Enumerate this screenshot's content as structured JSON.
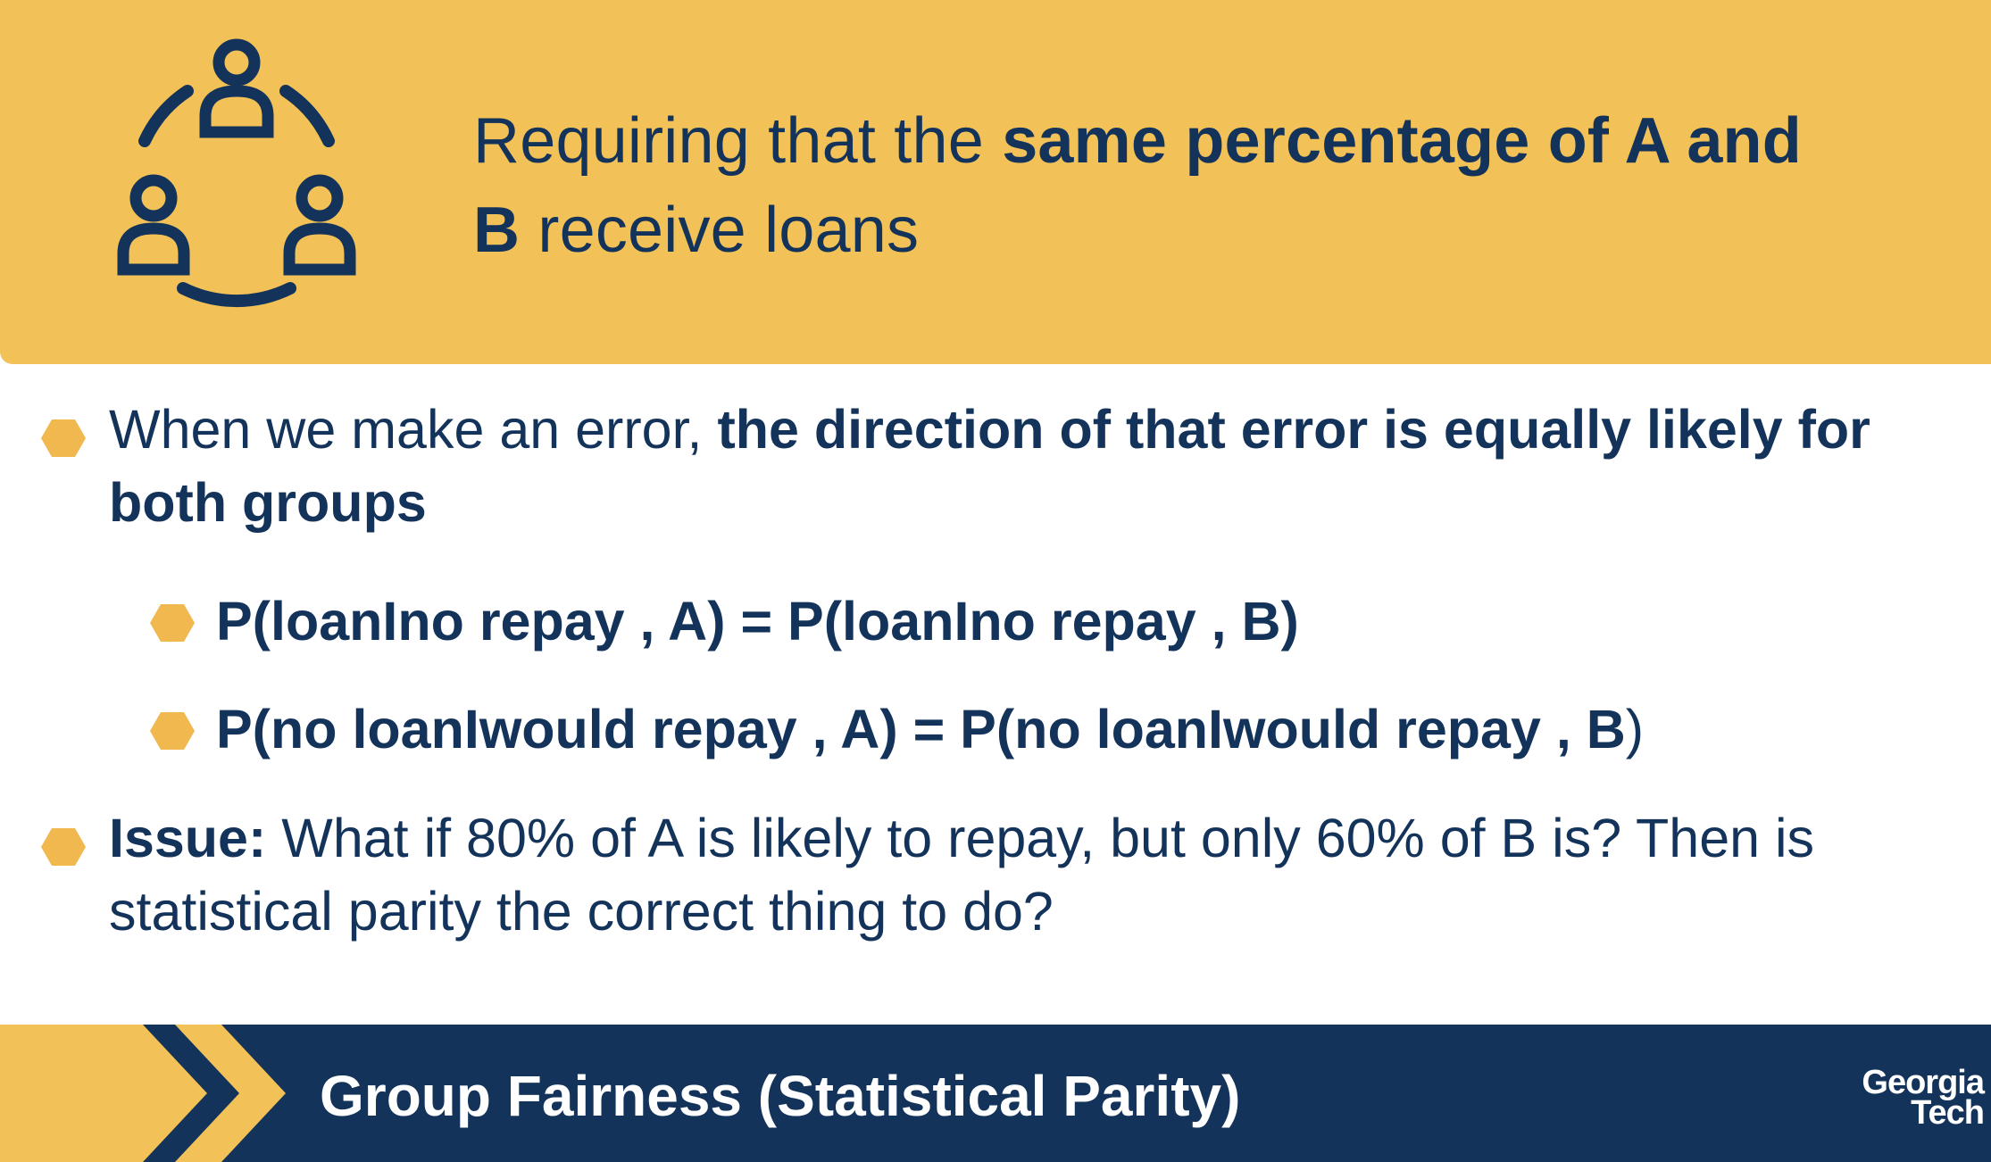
{
  "header": {
    "icon": "group-network-icon",
    "title_plain_1": "Requiring that the ",
    "title_bold_1": "same percentage of A and B",
    "title_plain_2": " receive loans"
  },
  "bullets": {
    "b1_plain": "When we make an error, ",
    "b1_bold": "the direction of that error is equally likely for both groups",
    "b2": "P(loanIno repay , A) = P(loanIno repay , B)",
    "b3_main": "P(no loanIwould repay , A) = P(no loanIwould repay , B",
    "b3_close": ")",
    "b4_bold": "Issue:",
    "b4_plain": " What if 80% of A is likely to repay, but only 60% of B is? Then is statistical parity the correct thing to do?"
  },
  "footer": {
    "title": "Group Fairness (Statistical Parity)",
    "logo_line1": "Georgia",
    "logo_line2": "Tech"
  },
  "colors": {
    "gold": "#f2c157",
    "navy": "#13335a",
    "hex_bullet": "#f0b84f"
  }
}
